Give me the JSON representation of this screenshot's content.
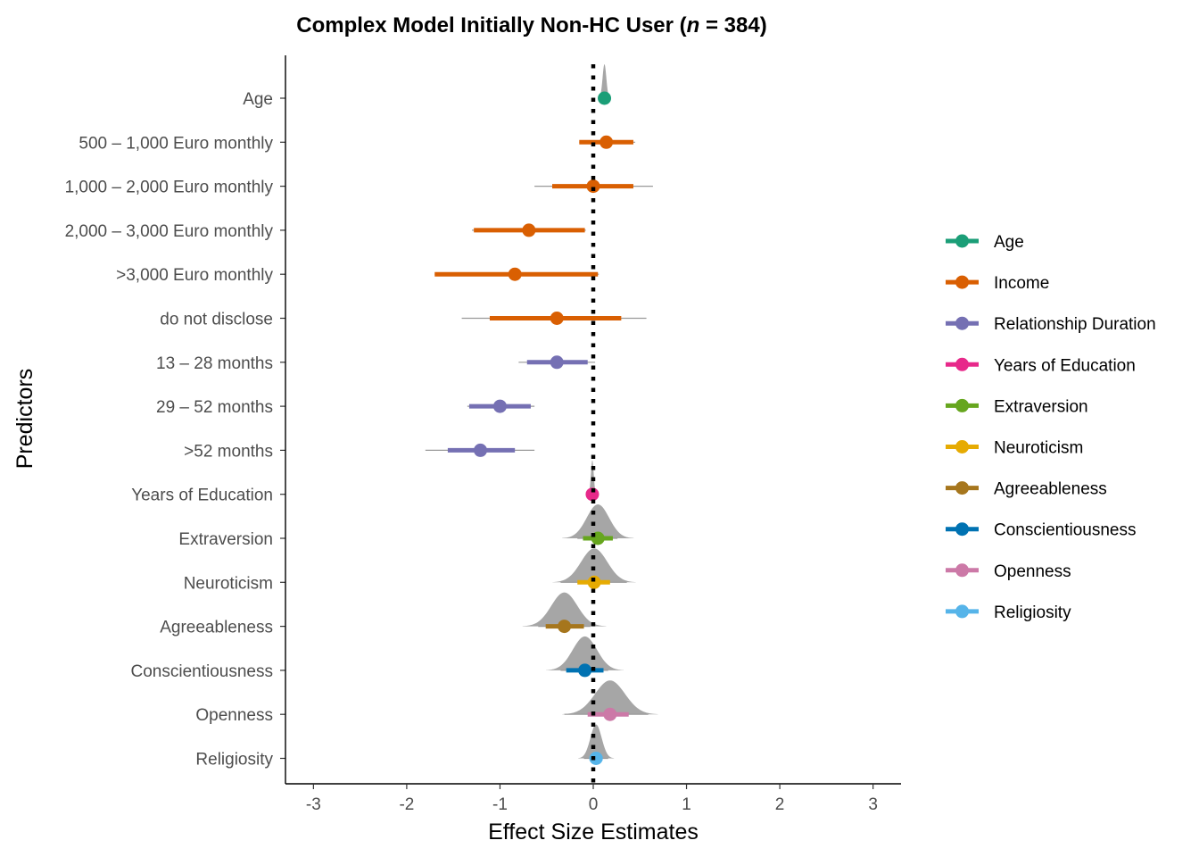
{
  "chart_data": {
    "type": "forest",
    "title_parts": [
      "Complex Model Initially Non-HC User (",
      "n",
      " = 384)"
    ],
    "xlabel": "Effect Size Estimates",
    "ylabel": "Predictors",
    "xlim": [
      -3.3,
      3.3
    ],
    "x_ticks": [
      -3,
      -2,
      -1,
      0,
      1,
      2,
      3
    ],
    "x_tick_labels": [
      "-3",
      "-2",
      "-1",
      "0",
      "1",
      "2",
      "3"
    ],
    "reference_line": 0,
    "grid": false,
    "legend_position": "right",
    "groups": [
      {
        "name": "Age",
        "color": "#1b9e77"
      },
      {
        "name": "Income",
        "color": "#d95f02"
      },
      {
        "name": "Relationship Duration",
        "color": "#7570b3"
      },
      {
        "name": "Years of Education",
        "color": "#e7298a"
      },
      {
        "name": "Extraversion",
        "color": "#66a61e"
      },
      {
        "name": "Neuroticism",
        "color": "#e6ab02"
      },
      {
        "name": "Agreeableness",
        "color": "#a6761d"
      },
      {
        "name": "Conscientiousness",
        "color": "#0072b2"
      },
      {
        "name": "Openness",
        "color": "#cc79a7"
      },
      {
        "name": "Religiosity",
        "color": "#56b4e9"
      }
    ],
    "predictors": [
      {
        "label": "Age",
        "group": 0,
        "estimate": 0.12,
        "ci_inner": [
          0.11,
          0.13
        ],
        "ci_outer": [
          0.1,
          0.14
        ],
        "density_spread": 0.02
      },
      {
        "label": "500 – 1,000 Euro monthly",
        "group": 1,
        "estimate": 0.14,
        "ci_inner": [
          -0.15,
          0.43
        ],
        "ci_outer": [
          -0.15,
          0.45
        ]
      },
      {
        "label": "1,000 – 2,000 Euro monthly",
        "group": 1,
        "estimate": 0.0,
        "ci_inner": [
          -0.44,
          0.43
        ],
        "ci_outer": [
          -0.63,
          0.64
        ]
      },
      {
        "label": "2,000 – 3,000 Euro monthly",
        "group": 1,
        "estimate": -0.69,
        "ci_inner": [
          -1.28,
          -0.09
        ],
        "ci_outer": [
          -1.3,
          -0.08
        ]
      },
      {
        "label": ">3,000 Euro monthly",
        "group": 1,
        "estimate": -0.84,
        "ci_inner": [
          -1.7,
          0.05
        ],
        "ci_outer": [
          -1.7,
          0.06
        ]
      },
      {
        "label": "do not disclose",
        "group": 1,
        "estimate": -0.39,
        "ci_inner": [
          -1.11,
          0.3
        ],
        "ci_outer": [
          -1.41,
          0.57
        ]
      },
      {
        "label": "13 – 28 months",
        "group": 2,
        "estimate": -0.39,
        "ci_inner": [
          -0.71,
          -0.06
        ],
        "ci_outer": [
          -0.8,
          0.02
        ]
      },
      {
        "label": "29 – 52 months",
        "group": 2,
        "estimate": -1.0,
        "ci_inner": [
          -1.33,
          -0.67
        ],
        "ci_outer": [
          -1.35,
          -0.63
        ]
      },
      {
        "label": ">52 months",
        "group": 2,
        "estimate": -1.21,
        "ci_inner": [
          -1.56,
          -0.84
        ],
        "ci_outer": [
          -1.8,
          -0.63
        ]
      },
      {
        "label": "Years of Education",
        "group": 3,
        "estimate": -0.01,
        "ci_inner": [
          -0.02,
          0.0
        ],
        "ci_outer": [
          -0.03,
          0.01
        ],
        "density_spread": 0.015
      },
      {
        "label": "Extraversion",
        "group": 4,
        "estimate": 0.05,
        "ci_inner": [
          -0.11,
          0.21
        ],
        "ci_outer": [
          -0.17,
          0.26
        ],
        "density_spread": 0.12
      },
      {
        "label": "Neuroticism",
        "group": 5,
        "estimate": 0.01,
        "ci_inner": [
          -0.17,
          0.18
        ],
        "ci_outer": [
          -0.35,
          0.36
        ],
        "density_spread": 0.14
      },
      {
        "label": "Agreeableness",
        "group": 6,
        "estimate": -0.31,
        "ci_inner": [
          -0.51,
          -0.1
        ],
        "ci_outer": [
          -0.59,
          -0.03
        ],
        "density_spread": 0.14
      },
      {
        "label": "Conscientiousness",
        "group": 7,
        "estimate": -0.09,
        "ci_inner": [
          -0.29,
          0.11
        ],
        "ci_outer": [
          -0.35,
          0.16
        ],
        "density_spread": 0.13
      },
      {
        "label": "Openness",
        "group": 8,
        "estimate": 0.18,
        "ci_inner": [
          -0.06,
          0.38
        ],
        "ci_outer": [
          -0.31,
          0.59
        ],
        "density_spread": 0.16
      },
      {
        "label": "Religiosity",
        "group": 9,
        "estimate": 0.03,
        "ci_inner": [
          -0.04,
          0.1
        ],
        "ci_outer": [
          -0.1,
          0.16
        ],
        "density_spread": 0.06
      }
    ]
  }
}
